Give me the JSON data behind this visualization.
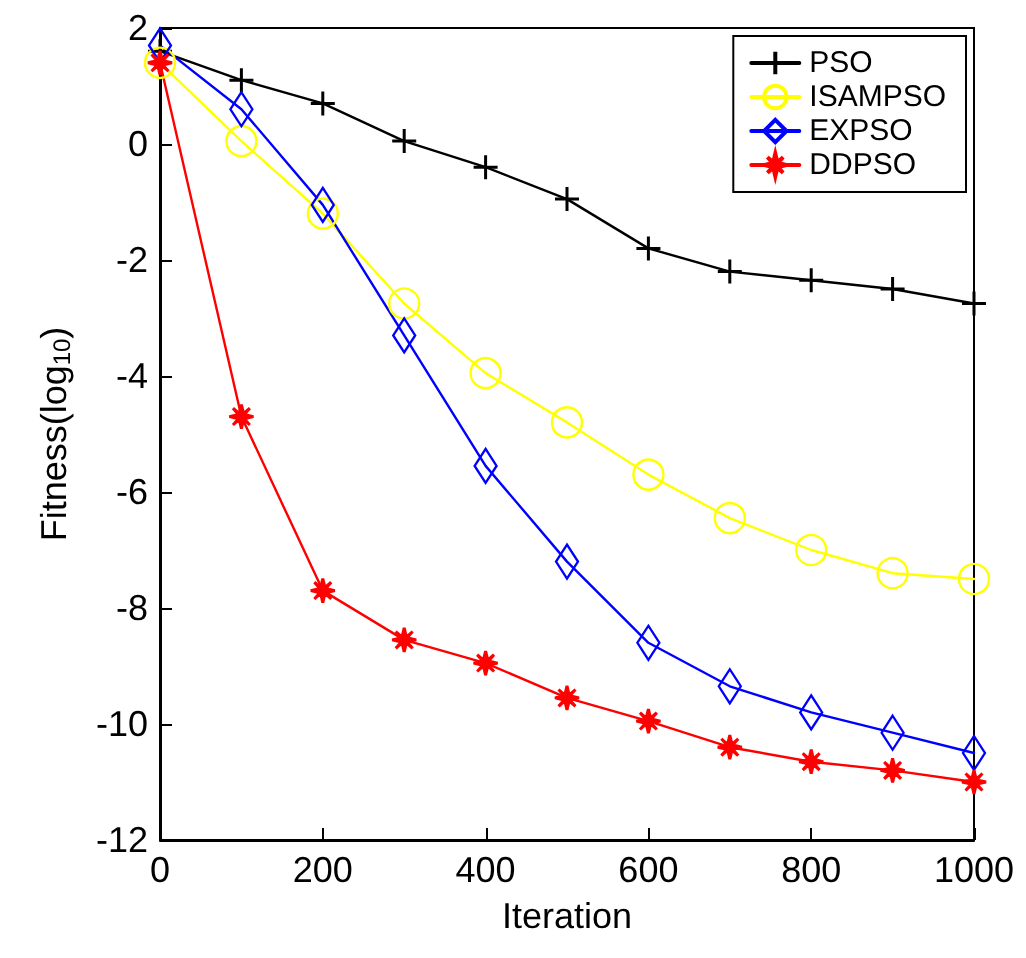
{
  "chart_data": {
    "type": "line",
    "xlabel": "Iteration",
    "ylabel": "Fitness(log$_{10}$)",
    "x": [
      0,
      100,
      200,
      300,
      400,
      500,
      600,
      700,
      800,
      900,
      1000
    ],
    "xlim": [
      0,
      1000
    ],
    "xticks": [
      0,
      200,
      400,
      600,
      800,
      1000
    ],
    "ylim": [
      -12,
      2
    ],
    "yticks": [
      -12,
      -10,
      -8,
      -6,
      -4,
      -2,
      0,
      2
    ],
    "grid": false,
    "legend": "top right",
    "line_style": "solid",
    "series": [
      {
        "name": "PSO",
        "color": "#000000",
        "marker": "cross",
        "values": [
          1.6,
          1.1,
          0.7,
          0.05,
          -0.4,
          -0.95,
          -1.8,
          -2.2,
          -2.35,
          -2.5,
          -2.75
        ]
      },
      {
        "name": "ISAMPSO",
        "color": "#ffff00",
        "marker": "circle",
        "values": [
          1.4,
          0.05,
          -1.2,
          -2.75,
          -3.95,
          -4.8,
          -5.7,
          -6.45,
          -7.0,
          -7.4,
          -7.5
        ]
      },
      {
        "name": "EXPSO",
        "color": "#0000ff",
        "marker": "diamond",
        "values": [
          1.7,
          0.6,
          -1.05,
          -3.3,
          -5.55,
          -7.2,
          -8.6,
          -9.35,
          -9.8,
          -10.15,
          -10.5
        ]
      },
      {
        "name": "DDPSO",
        "color": "#ff0000",
        "marker": "star",
        "values": [
          1.4,
          -4.7,
          -7.7,
          -8.55,
          -8.95,
          -9.55,
          -9.95,
          -10.4,
          -10.65,
          -10.8,
          -11.0
        ]
      }
    ]
  }
}
